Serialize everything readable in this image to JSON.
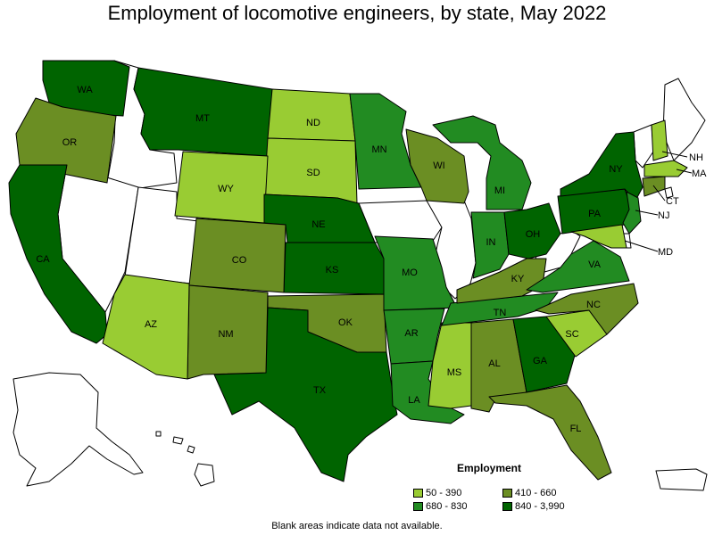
{
  "title": "Employment of locomotive engineers, by state, May 2022",
  "legend": {
    "title": "Employment",
    "items": [
      {
        "label": "50 - 390",
        "color": "#99cc33"
      },
      {
        "label": "410 - 660",
        "color": "#6b8e23"
      },
      {
        "label": "680 - 830",
        "color": "#228b22"
      },
      {
        "label": "840 - 3,990",
        "color": "#006400"
      }
    ]
  },
  "footnote": "Blank areas indicate data not available.",
  "colors": {
    "no_data": "#ffffff"
  },
  "states": [
    {
      "abbr": "WA",
      "range": "840 - 3,990"
    },
    {
      "abbr": "OR",
      "range": "410 - 660"
    },
    {
      "abbr": "CA",
      "range": "840 - 3,990"
    },
    {
      "abbr": "MT",
      "range": "840 - 3,990"
    },
    {
      "abbr": "ND",
      "range": "50 - 390"
    },
    {
      "abbr": "SD",
      "range": "50 - 390"
    },
    {
      "abbr": "WY",
      "range": "50 - 390"
    },
    {
      "abbr": "NE",
      "range": "840 - 3,990"
    },
    {
      "abbr": "KS",
      "range": "840 - 3,990"
    },
    {
      "abbr": "CO",
      "range": "410 - 660"
    },
    {
      "abbr": "OK",
      "range": "410 - 660"
    },
    {
      "abbr": "TX",
      "range": "840 - 3,990"
    },
    {
      "abbr": "NM",
      "range": "410 - 660"
    },
    {
      "abbr": "AZ",
      "range": "50 - 390"
    },
    {
      "abbr": "MN",
      "range": "680 - 830"
    },
    {
      "abbr": "WI",
      "range": "410 - 660"
    },
    {
      "abbr": "MI",
      "range": "680 - 830"
    },
    {
      "abbr": "IN",
      "range": "680 - 830"
    },
    {
      "abbr": "OH",
      "range": "840 - 3,990"
    },
    {
      "abbr": "MO",
      "range": "680 - 830"
    },
    {
      "abbr": "AR",
      "range": "680 - 830"
    },
    {
      "abbr": "LA",
      "range": "680 - 830"
    },
    {
      "abbr": "MS",
      "range": "50 - 390"
    },
    {
      "abbr": "AL",
      "range": "410 - 660"
    },
    {
      "abbr": "TN",
      "range": "680 - 830"
    },
    {
      "abbr": "KY",
      "range": "410 - 660"
    },
    {
      "abbr": "GA",
      "range": "840 - 3,990"
    },
    {
      "abbr": "FL",
      "range": "410 - 660"
    },
    {
      "abbr": "SC",
      "range": "50 - 390"
    },
    {
      "abbr": "NC",
      "range": "410 - 660"
    },
    {
      "abbr": "VA",
      "range": "680 - 830"
    },
    {
      "abbr": "PA",
      "range": "840 - 3,990"
    },
    {
      "abbr": "NY",
      "range": "840 - 3,990"
    },
    {
      "abbr": "NJ",
      "range": "680 - 830"
    },
    {
      "abbr": "MD",
      "range": "50 - 390"
    },
    {
      "abbr": "CT",
      "range": "410 - 660"
    },
    {
      "abbr": "MA",
      "range": "50 - 390"
    },
    {
      "abbr": "NH",
      "range": "50 - 390"
    }
  ]
}
